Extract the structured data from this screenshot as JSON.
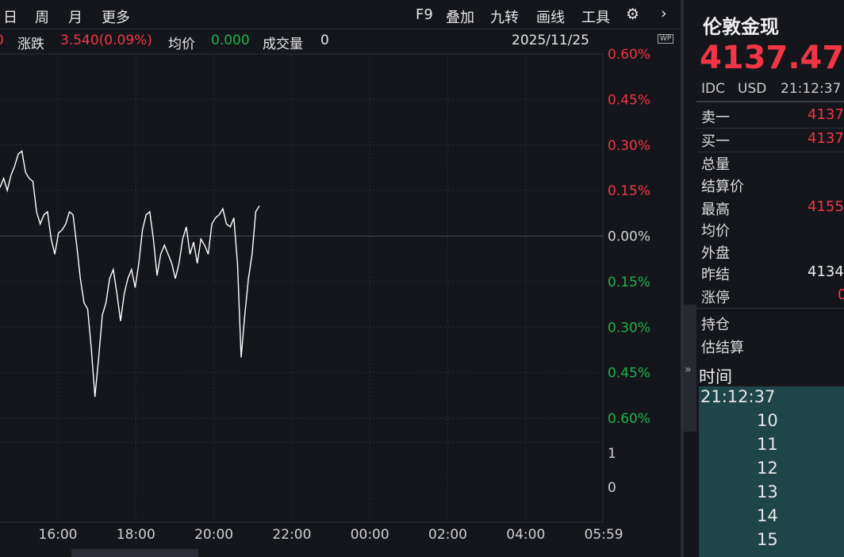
{
  "toolbar": {
    "left": [
      "日",
      "周",
      "月",
      "更多"
    ],
    "right": [
      "F9",
      "叠加",
      "九转",
      "画线",
      "工具"
    ]
  },
  "info": {
    "prev": "0",
    "change_label": "涨跌",
    "change": "3.540(0.09%)",
    "avg_label": "均价",
    "avg": "0.000",
    "volume_label": "成交量",
    "volume": "0",
    "date": "2025/11/25",
    "badge": "WP"
  },
  "chart_data": {
    "type": "line",
    "series": [
      {
        "color": "#ffffff",
        "values": [
          0.16,
          0.19,
          0.15,
          0.2,
          0.23,
          0.27,
          0.28,
          0.21,
          0.19,
          0.18,
          0.08,
          0.04,
          0.07,
          0.08,
          -0.01,
          -0.06,
          0.01,
          0.02,
          0.04,
          0.08,
          0.07,
          -0.03,
          -0.14,
          -0.22,
          -0.24,
          -0.37,
          -0.53,
          -0.4,
          -0.26,
          -0.22,
          -0.14,
          -0.11,
          -0.19,
          -0.28,
          -0.19,
          -0.14,
          -0.11,
          -0.17,
          -0.09,
          0.02,
          0.07,
          0.08,
          -0.01,
          -0.13,
          -0.06,
          -0.03,
          -0.06,
          -0.09,
          -0.14,
          -0.09,
          -0.01,
          0.03,
          -0.06,
          -0.02,
          -0.09,
          -0.01,
          -0.03,
          -0.06,
          0.04,
          0.06,
          0.07,
          0.09,
          0.04,
          0.03,
          0.06,
          -0.09,
          -0.4,
          -0.26,
          -0.14,
          -0.06,
          0.08,
          0.1
        ]
      }
    ],
    "ylim": [
      -0.6,
      0.6
    ],
    "yticks": [
      {
        "value": 0.6,
        "label": "0.60%"
      },
      {
        "value": 0.45,
        "label": "0.45%"
      },
      {
        "value": 0.3,
        "label": "0.30%"
      },
      {
        "value": 0.15,
        "label": "0.15%"
      },
      {
        "value": 0,
        "label": "0.00%"
      },
      {
        "value": -0.15,
        "label": "0.15%"
      },
      {
        "value": -0.3,
        "label": "0.30%"
      },
      {
        "value": -0.45,
        "label": "0.45%"
      },
      {
        "value": -0.6,
        "label": "0.60%"
      }
    ],
    "volume_ticks": [
      1,
      0
    ],
    "time_labels": [
      "16:00",
      "18:00",
      "20:00",
      "22:00",
      "00:00",
      "02:00",
      "04:00",
      "05:59"
    ]
  },
  "quote": {
    "name": "伦敦金现",
    "price": "4137.47",
    "source": "IDC",
    "currency": "USD",
    "time": "21:12:37",
    "rows": [
      {
        "label": "卖一",
        "value": "4137"
      },
      {
        "label": "买一",
        "value": "4137"
      },
      {
        "label": "总量"
      },
      {
        "label": "结算价"
      },
      {
        "label": "最高",
        "value": "4155"
      },
      {
        "label": "均价"
      },
      {
        "label": "外盘"
      },
      {
        "label": "昨结",
        "value": "4134"
      },
      {
        "label": "涨停",
        "value": "0"
      },
      {
        "label": "持仓"
      },
      {
        "label": "估结算"
      }
    ],
    "ticks_header": "时间",
    "ticks": [
      "21:12:37",
      "10",
      "11",
      "12",
      "13",
      "14",
      "15"
    ]
  }
}
